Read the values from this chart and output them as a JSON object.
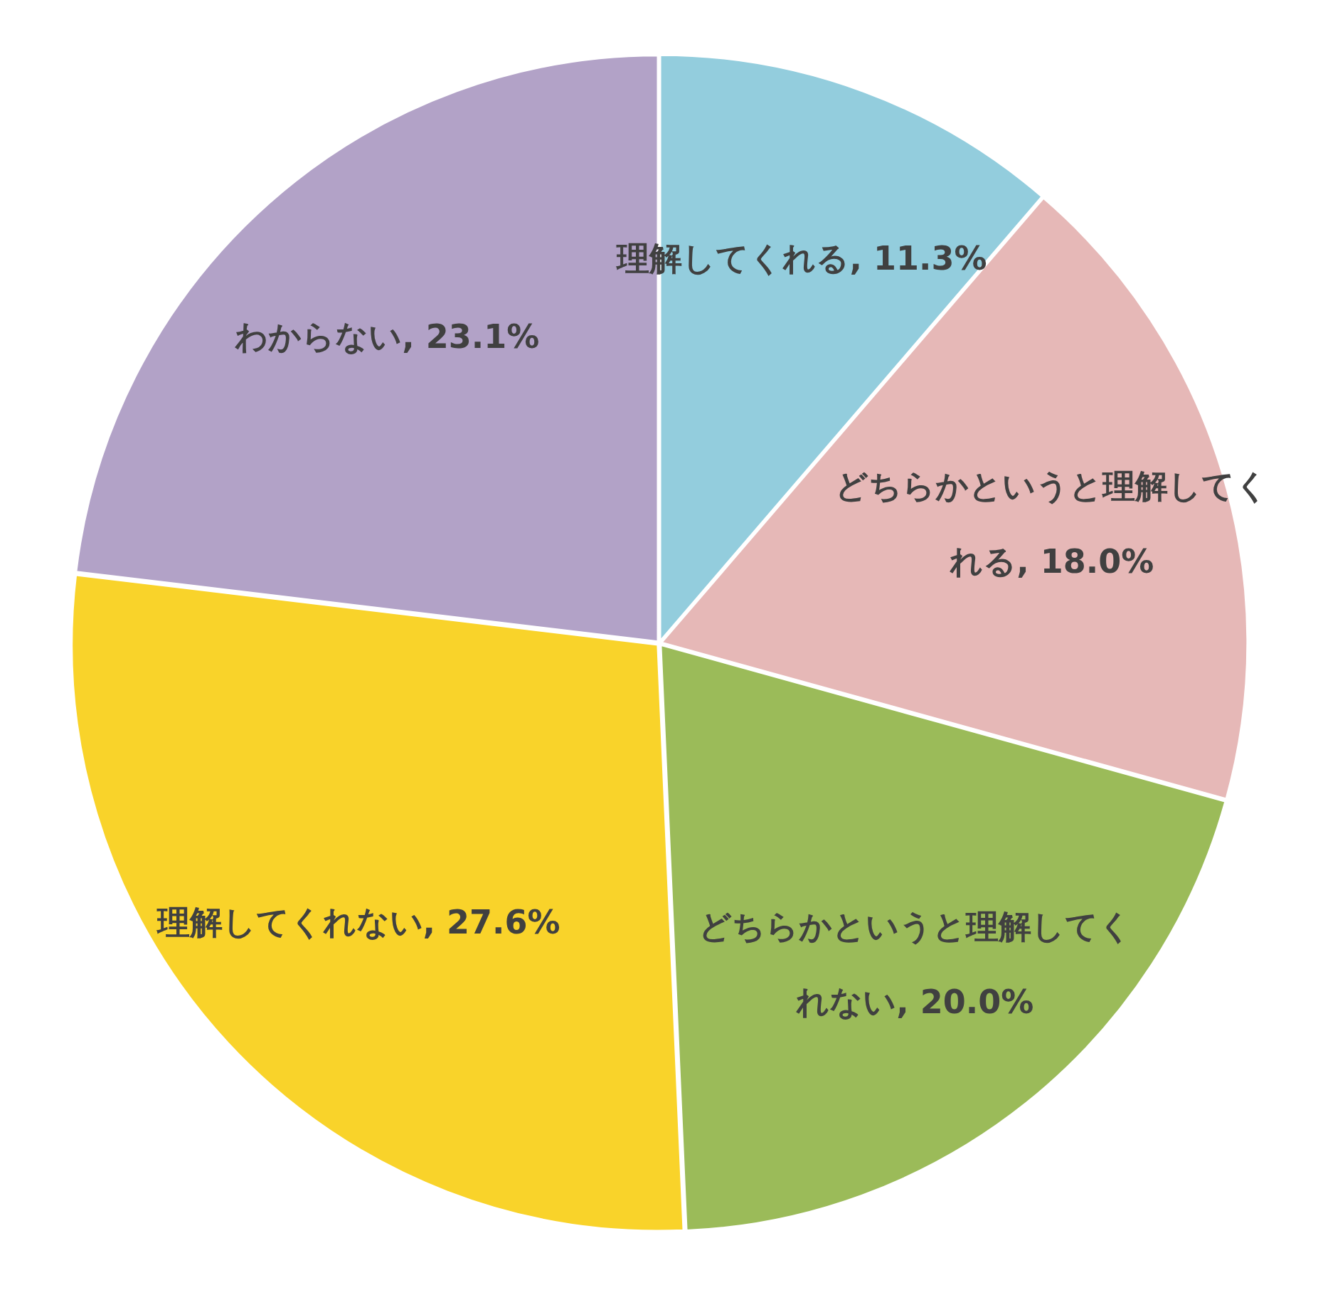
{
  "chart_data": {
    "type": "pie",
    "categories": [
      "理解してくれる",
      "どちらかというと理解してくれる",
      "どちらかというと理解してくれない",
      "理解してくれない",
      "わからない"
    ],
    "values": [
      11.3,
      18.0,
      20.0,
      27.6,
      23.1
    ],
    "value_labels": [
      "11.3%",
      "18.0%",
      "20.0%",
      "27.6%",
      "23.1%"
    ],
    "colors": [
      "#93cddd",
      "#e6b8b7",
      "#9bbb59",
      "#f9d32a",
      "#b2a2c7"
    ],
    "data_labels": true
  }
}
